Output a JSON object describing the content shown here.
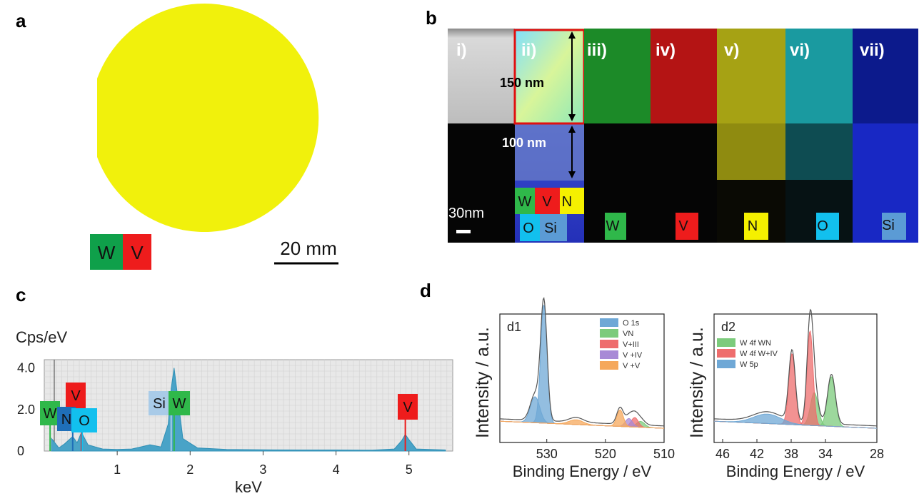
{
  "panels": {
    "a": {
      "letter": "a",
      "badges": [
        {
          "text": "W",
          "color": "#0fa04a"
        },
        {
          "text": "V",
          "color": "#ee1c1c"
        }
      ],
      "scale_bar": "20 mm",
      "wafer_color": "#f1f10c"
    },
    "b": {
      "letter": "b",
      "sub_labels": [
        "i)",
        "ii)",
        "iii)",
        "iv)",
        "v)",
        "vi)",
        "vii)"
      ],
      "measure_150": "150 nm",
      "measure_100": "100 nm",
      "scale_bar": "30nm",
      "overlay_badges": [
        {
          "text": "W",
          "color": "#2fb84a"
        },
        {
          "text": "V",
          "color": "#ee1c1c"
        },
        {
          "text": "N",
          "color": "#f5f000"
        },
        {
          "text": "O",
          "color": "#12c0ee"
        },
        {
          "text": "Si",
          "color": "#5b9bd5"
        }
      ],
      "map_badges": [
        {
          "text": "W",
          "color": "#2fb84a"
        },
        {
          "text": "V",
          "color": "#ee1c1c"
        },
        {
          "text": "N",
          "color": "#f5f000"
        },
        {
          "text": "O",
          "color": "#12c0ee"
        },
        {
          "text": "Si",
          "color": "#5b9bd5"
        }
      ]
    },
    "c": {
      "letter": "c",
      "chart_data": {
        "type": "line",
        "ylabel": "Cps/eV",
        "xlabel": "keV",
        "x_ticks": [
          "1",
          "2",
          "3",
          "4",
          "5"
        ],
        "y_ticks": [
          "4.0",
          "2.0",
          "0"
        ],
        "xlim": [
          0.0,
          5.6
        ],
        "ylim": [
          0,
          4.4
        ],
        "peak_labels": [
          {
            "text": "W",
            "energy": 0.08,
            "color": "#2fb84a"
          },
          {
            "text": "V",
            "energy": 0.51,
            "color": "#ee1c1c"
          },
          {
            "text": "N",
            "energy": 0.39,
            "color": "#1f6fb8"
          },
          {
            "text": "O",
            "energy": 0.52,
            "color": "#12c0ee"
          },
          {
            "text": "Si",
            "energy": 1.74,
            "color": "#a9cbe8"
          },
          {
            "text": "W",
            "energy": 1.78,
            "color": "#2fb84a"
          },
          {
            "text": "V",
            "energy": 4.95,
            "color": "#ee1c1c"
          }
        ],
        "x": [
          0.1,
          0.2,
          0.28,
          0.39,
          0.45,
          0.51,
          0.6,
          0.8,
          1.0,
          1.2,
          1.45,
          1.6,
          1.7,
          1.74,
          1.78,
          1.83,
          1.9,
          2.1,
          2.5,
          3.0,
          3.5,
          4.0,
          4.5,
          4.8,
          4.9,
          4.95,
          5.0,
          5.1,
          5.5
        ],
        "y": [
          0.6,
          0.15,
          0.35,
          0.7,
          0.4,
          0.9,
          0.3,
          0.1,
          0.08,
          0.1,
          0.3,
          0.2,
          1.3,
          3.0,
          4.0,
          2.6,
          0.6,
          0.15,
          0.08,
          0.06,
          0.05,
          0.05,
          0.04,
          0.1,
          0.5,
          0.8,
          0.55,
          0.1,
          0.05
        ]
      }
    },
    "d": {
      "letter": "d",
      "charts": [
        {
          "type": "area",
          "label": "d1",
          "ylabel": "Intensity / a.u.",
          "xlabel": "Binding Energy / eV",
          "x_ticks": [
            "530",
            "520",
            "510"
          ],
          "xlim": [
            538,
            510
          ],
          "legend": [
            {
              "name": "O 1s",
              "color": "#6fa8d6"
            },
            {
              "name": "VN",
              "color": "#7ccb7c"
            },
            {
              "name": "V+III",
              "color": "#ee6d6d"
            },
            {
              "name": "V +IV",
              "color": "#a88ad6"
            },
            {
              "name": "V +V",
              "color": "#f5a85c"
            }
          ],
          "series": [
            {
              "name": "O 1s",
              "peaks": [
                {
                  "center": 530.5,
                  "height": 1.0,
                  "width": 0.55
                },
                {
                  "center": 532.0,
                  "height": 0.22,
                  "width": 0.8
                }
              ]
            },
            {
              "name": "VN",
              "peaks": [
                {
                  "center": 514.0,
                  "height": 0.05,
                  "width": 0.7
                }
              ]
            },
            {
              "name": "V+III",
              "peaks": [
                {
                  "center": 515.0,
                  "height": 0.08,
                  "width": 0.6
                }
              ]
            },
            {
              "name": "V +IV",
              "peaks": [
                {
                  "center": 516.0,
                  "height": 0.07,
                  "width": 0.6
                }
              ]
            },
            {
              "name": "V +V",
              "peaks": [
                {
                  "center": 517.5,
                  "height": 0.14,
                  "width": 0.55
                },
                {
                  "center": 525.0,
                  "height": 0.04,
                  "width": 1.2
                }
              ]
            }
          ]
        },
        {
          "type": "area",
          "label": "d2",
          "ylabel": "Intensity / a.u.",
          "xlabel": "Binding Energy / eV",
          "x_ticks": [
            "46",
            "42",
            "38",
            "34",
            "28"
          ],
          "xlim": [
            47,
            28
          ],
          "legend": [
            {
              "name": "W 4f WN",
              "color": "#7ccb7c"
            },
            {
              "name": "W 4f W+IV",
              "color": "#ee6d6d"
            },
            {
              "name": "W 5p",
              "color": "#6fa8d6"
            }
          ],
          "series": [
            {
              "name": "W 4f WN",
              "peaks": [
                {
                  "center": 33.3,
                  "height": 0.42,
                  "width": 0.45
                },
                {
                  "center": 35.3,
                  "height": 0.28,
                  "width": 0.45
                }
              ]
            },
            {
              "name": "W 4f W+IV",
              "peaks": [
                {
                  "center": 35.8,
                  "height": 0.8,
                  "width": 0.35
                },
                {
                  "center": 37.9,
                  "height": 0.6,
                  "width": 0.38
                }
              ]
            },
            {
              "name": "W 5p",
              "peaks": [
                {
                  "center": 40.8,
                  "height": 0.08,
                  "width": 1.6
                }
              ]
            }
          ]
        }
      ]
    }
  }
}
